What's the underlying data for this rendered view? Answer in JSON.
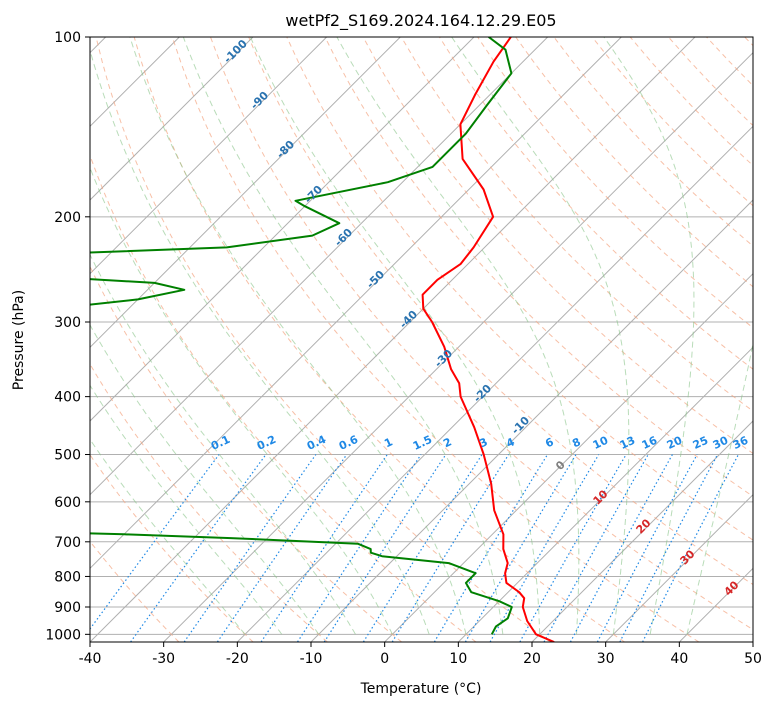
{
  "chart_data": {
    "type": "line",
    "diagram": "skew-t log-p",
    "title": "wetPf2_S169.2024.164.12.29.E05",
    "xlabel": "Temperature (°C)",
    "ylabel": "Pressure (hPa)",
    "xlim": [
      -40,
      50
    ],
    "ylim": [
      1030,
      100
    ],
    "y_scale": "log",
    "x_ticks": [
      -40,
      -30,
      -20,
      -10,
      0,
      10,
      20,
      30,
      40,
      50
    ],
    "y_ticks": [
      100,
      200,
      300,
      400,
      500,
      600,
      700,
      800,
      900,
      1000
    ],
    "grid": true,
    "series": [
      {
        "color": "#ff0000",
        "points": [
          [
            1030,
            23
          ],
          [
            1000,
            19.5
          ],
          [
            950,
            16.5
          ],
          [
            900,
            14
          ],
          [
            870,
            13
          ],
          [
            850,
            11.5
          ],
          [
            820,
            8.5
          ],
          [
            790,
            7
          ],
          [
            760,
            6
          ],
          [
            720,
            3.5
          ],
          [
            680,
            1.5
          ],
          [
            620,
            -3
          ],
          [
            560,
            -7
          ],
          [
            500,
            -12
          ],
          [
            450,
            -17
          ],
          [
            400,
            -23
          ],
          [
            380,
            -25
          ],
          [
            360,
            -28
          ],
          [
            330,
            -32
          ],
          [
            300,
            -37
          ],
          [
            285,
            -40
          ],
          [
            270,
            -42
          ],
          [
            255,
            -42
          ],
          [
            240,
            -41
          ],
          [
            225,
            -41.5
          ],
          [
            200,
            -43
          ],
          [
            180,
            -48
          ],
          [
            160,
            -55
          ],
          [
            140,
            -60
          ],
          [
            125,
            -62
          ],
          [
            110,
            -64
          ],
          [
            100,
            -65
          ]
        ]
      },
      {
        "color": "#008000",
        "points": [
          [
            1000,
            13.5
          ],
          [
            970,
            13
          ],
          [
            940,
            13.5
          ],
          [
            900,
            12.5
          ],
          [
            880,
            10
          ],
          [
            850,
            5
          ],
          [
            820,
            3
          ],
          [
            790,
            3
          ],
          [
            760,
            -2
          ],
          [
            740,
            -12
          ],
          [
            730,
            -14
          ],
          [
            720,
            -14.5
          ],
          [
            705,
            -17
          ],
          [
            690,
            -35
          ],
          [
            680,
            -50
          ],
          [
            670,
            -70
          ],
          [
            655,
            -76
          ],
          [
            650,
            -75
          ],
          [
            625,
            -60
          ],
          [
            600,
            -65
          ],
          [
            575,
            -80
          ],
          [
            560,
            -80
          ],
          [
            520,
            -70
          ],
          [
            500,
            -70
          ],
          [
            480,
            -80
          ],
          [
            470,
            -100
          ],
          [
            295,
            -100
          ],
          [
            275,
            -80
          ],
          [
            265,
            -75
          ],
          [
            258,
            -80
          ],
          [
            250,
            -100
          ],
          [
            245,
            -100
          ],
          [
            230,
            -95
          ],
          [
            225,
            -75
          ],
          [
            215,
            -65
          ],
          [
            205,
            -63
          ],
          [
            192,
            -70
          ],
          [
            188,
            -72
          ],
          [
            175,
            -62
          ],
          [
            165,
            -58
          ],
          [
            145,
            -58
          ],
          [
            130,
            -59
          ],
          [
            115,
            -60
          ],
          [
            105,
            -64
          ],
          [
            100,
            -68
          ]
        ]
      }
    ],
    "dry_adiabats_label": "",
    "mixing_ratio_labels": [
      "0.1",
      "0.2",
      "0.4",
      "0.6",
      "1",
      "1.5",
      "2",
      "3",
      "4",
      "6",
      "8",
      "10",
      "13",
      "16",
      "20",
      "25",
      "30",
      "36"
    ],
    "theta_labels": [
      "-100",
      "-90",
      "-80",
      "-70",
      "-60",
      "-50",
      "-40",
      "-30",
      "-20",
      "-10"
    ],
    "wet_adiabat_labels": [
      "0"
    ],
    "moist_labels": [
      "10",
      "20",
      "30",
      "40"
    ]
  }
}
